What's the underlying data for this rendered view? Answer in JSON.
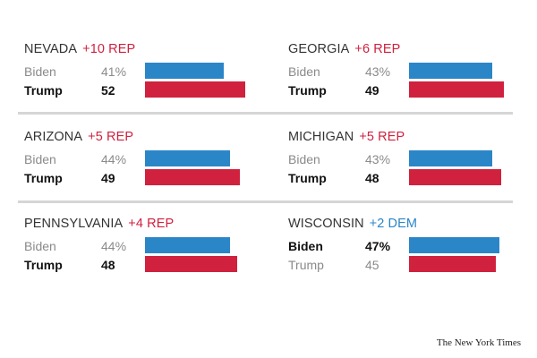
{
  "chart_data": {
    "type": "bar",
    "orientation": "horizontal",
    "states": [
      {
        "state": "NEVADA",
        "margin": "+10 REP",
        "margin_party": "rep",
        "rows": [
          {
            "candidate": "Biden",
            "label": "41%",
            "value": 41,
            "party": "dem",
            "leader": false
          },
          {
            "candidate": "Trump",
            "label": "52",
            "value": 52,
            "party": "rep",
            "leader": true
          }
        ]
      },
      {
        "state": "GEORGIA",
        "margin": "+6 REP",
        "margin_party": "rep",
        "rows": [
          {
            "candidate": "Biden",
            "label": "43%",
            "value": 43,
            "party": "dem",
            "leader": false
          },
          {
            "candidate": "Trump",
            "label": "49",
            "value": 49,
            "party": "rep",
            "leader": true
          }
        ]
      },
      {
        "state": "ARIZONA",
        "margin": "+5 REP",
        "margin_party": "rep",
        "rows": [
          {
            "candidate": "Biden",
            "label": "44%",
            "value": 44,
            "party": "dem",
            "leader": false
          },
          {
            "candidate": "Trump",
            "label": "49",
            "value": 49,
            "party": "rep",
            "leader": true
          }
        ]
      },
      {
        "state": "MICHIGAN",
        "margin": "+5 REP",
        "margin_party": "rep",
        "rows": [
          {
            "candidate": "Biden",
            "label": "43%",
            "value": 43,
            "party": "dem",
            "leader": false
          },
          {
            "candidate": "Trump",
            "label": "48",
            "value": 48,
            "party": "rep",
            "leader": true
          }
        ]
      },
      {
        "state": "PENNSYLVANIA",
        "margin": "+4 REP",
        "margin_party": "rep",
        "rows": [
          {
            "candidate": "Biden",
            "label": "44%",
            "value": 44,
            "party": "dem",
            "leader": false
          },
          {
            "candidate": "Trump",
            "label": "48",
            "value": 48,
            "party": "rep",
            "leader": true
          }
        ]
      },
      {
        "state": "WISCONSIN",
        "margin": "+2 DEM",
        "margin_party": "dem",
        "rows": [
          {
            "candidate": "Biden",
            "label": "47%",
            "value": 47,
            "party": "dem",
            "leader": true
          },
          {
            "candidate": "Trump",
            "label": "45",
            "value": 45,
            "party": "rep",
            "leader": false
          }
        ]
      }
    ],
    "colors": {
      "dem": "#2b86c8",
      "rep": "#d0213e"
    },
    "grid": false,
    "legend": "none"
  },
  "source": "The New York Times"
}
